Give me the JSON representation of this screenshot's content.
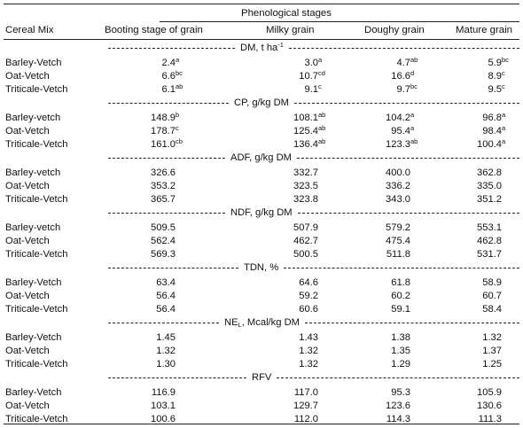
{
  "header": {
    "group_label": "Phenological stages",
    "col_mix": "Cereal Mix",
    "col_booting": "Booting stage of grain",
    "col_milky": "Milky grain",
    "col_doughy": "Doughy grain",
    "col_mature": "Mature grain"
  },
  "sections": [
    {
      "title": "DM, t ha",
      "title_sup": "-1",
      "title_sub": "",
      "title_rest": "",
      "rows": [
        {
          "name": "Barley-Vetch",
          "v": [
            [
              "2.4",
              "a"
            ],
            [
              "3.0",
              "a"
            ],
            [
              "4.7",
              "ab"
            ],
            [
              "5.9",
              "bc"
            ]
          ]
        },
        {
          "name": "Oat-Vetch",
          "v": [
            [
              "6.6",
              "bc"
            ],
            [
              "10.7",
              "cd"
            ],
            [
              "16.6",
              "d"
            ],
            [
              "8.9",
              "c"
            ]
          ]
        },
        {
          "name": "Triticale-Vetch",
          "v": [
            [
              "6.1",
              "ab"
            ],
            [
              "9.1",
              "c"
            ],
            [
              "9.7",
              "bc"
            ],
            [
              "9.5",
              "c"
            ]
          ]
        }
      ]
    },
    {
      "title": "CP, g/kg DM",
      "title_sup": "",
      "title_sub": "",
      "title_rest": "",
      "rows": [
        {
          "name": "Barley-vetch",
          "v": [
            [
              "148.9",
              "b"
            ],
            [
              "108.1",
              "ab"
            ],
            [
              "104.2",
              "a"
            ],
            [
              "96.8",
              "a"
            ]
          ]
        },
        {
          "name": "Oat-Vetch",
          "v": [
            [
              "178.7",
              "c"
            ],
            [
              "125.4",
              "ab"
            ],
            [
              "95.4",
              "a"
            ],
            [
              "98.4",
              "a"
            ]
          ]
        },
        {
          "name": "Triticale-Vetch",
          "v": [
            [
              "161.0",
              "cb"
            ],
            [
              "136.4",
              "ab"
            ],
            [
              "123.3",
              "ab"
            ],
            [
              "100.4",
              "a"
            ]
          ]
        }
      ]
    },
    {
      "title": "ADF, g/kg DM",
      "title_sup": "",
      "title_sub": "",
      "title_rest": "",
      "rows": [
        {
          "name": "Barley-vetch",
          "v": [
            [
              "326.6",
              ""
            ],
            [
              "332.7",
              ""
            ],
            [
              "400.0",
              ""
            ],
            [
              "362.8",
              ""
            ]
          ]
        },
        {
          "name": "Oat-Vetch",
          "v": [
            [
              "353.2",
              ""
            ],
            [
              "323.5",
              ""
            ],
            [
              "336.2",
              ""
            ],
            [
              "335.0",
              ""
            ]
          ]
        },
        {
          "name": "Triticale-Vetch",
          "v": [
            [
              "365.7",
              ""
            ],
            [
              "323.8",
              ""
            ],
            [
              "343.0",
              ""
            ],
            [
              "351.2",
              ""
            ]
          ]
        }
      ]
    },
    {
      "title": "NDF, g/kg DM",
      "title_sup": "",
      "title_sub": "",
      "title_rest": "",
      "rows": [
        {
          "name": "Barley-vetch",
          "v": [
            [
              "509.5",
              ""
            ],
            [
              "507.9",
              ""
            ],
            [
              "579.2",
              ""
            ],
            [
              "553.1",
              ""
            ]
          ]
        },
        {
          "name": "Oat-Vetch",
          "v": [
            [
              "562.4",
              ""
            ],
            [
              "462.7",
              ""
            ],
            [
              "475.4",
              ""
            ],
            [
              "462.8",
              ""
            ]
          ]
        },
        {
          "name": "Triticale-Vetch",
          "v": [
            [
              "569.3",
              ""
            ],
            [
              "500.5",
              ""
            ],
            [
              "511.8",
              ""
            ],
            [
              "531.7",
              ""
            ]
          ]
        }
      ]
    },
    {
      "title": "TDN, %",
      "title_sup": "",
      "title_sub": "",
      "title_rest": "",
      "rows": [
        {
          "name": "Barley-Vetch",
          "v": [
            [
              "63.4",
              ""
            ],
            [
              "64.6",
              ""
            ],
            [
              "61.8",
              ""
            ],
            [
              "58.9",
              ""
            ]
          ]
        },
        {
          "name": "Oat-Vetch",
          "v": [
            [
              "56.4",
              ""
            ],
            [
              "59.2",
              ""
            ],
            [
              "60.2",
              ""
            ],
            [
              "60.7",
              ""
            ]
          ]
        },
        {
          "name": "Triticale-Vetch",
          "v": [
            [
              "56.4",
              ""
            ],
            [
              "60.6",
              ""
            ],
            [
              "59.1",
              ""
            ],
            [
              "58.4",
              ""
            ]
          ]
        }
      ]
    },
    {
      "title": "NE",
      "title_sup": "",
      "title_sub": "L",
      "title_rest": ", Mcal/kg DM",
      "rows": [
        {
          "name": "Barley-Vetch",
          "v": [
            [
              "1.45",
              ""
            ],
            [
              "1.43",
              ""
            ],
            [
              "1.38",
              ""
            ],
            [
              "1.32",
              ""
            ]
          ]
        },
        {
          "name": "Oat-Vetch",
          "v": [
            [
              "1.32",
              ""
            ],
            [
              "1.32",
              ""
            ],
            [
              "1.35",
              ""
            ],
            [
              "1.37",
              ""
            ]
          ]
        },
        {
          "name": "Triticale-Vetch",
          "v": [
            [
              "1.30",
              ""
            ],
            [
              "1.32",
              ""
            ],
            [
              "1.29",
              ""
            ],
            [
              "1.25",
              ""
            ]
          ]
        }
      ]
    },
    {
      "title": "RFV",
      "title_sup": "",
      "title_sub": "",
      "title_rest": "",
      "rows": [
        {
          "name": "Barley-Vetch",
          "v": [
            [
              "116.9",
              ""
            ],
            [
              "117.0",
              ""
            ],
            [
              "95.3",
              ""
            ],
            [
              "105.9",
              ""
            ]
          ]
        },
        {
          "name": "Oat-Vetch",
          "v": [
            [
              "103.1",
              ""
            ],
            [
              "129.7",
              ""
            ],
            [
              "123.6",
              ""
            ],
            [
              "130.6",
              ""
            ]
          ]
        },
        {
          "name": "Triticale-Vetch",
          "v": [
            [
              "100.6",
              ""
            ],
            [
              "112.0",
              ""
            ],
            [
              "114.3",
              ""
            ],
            [
              "111.3",
              ""
            ]
          ]
        }
      ]
    }
  ]
}
